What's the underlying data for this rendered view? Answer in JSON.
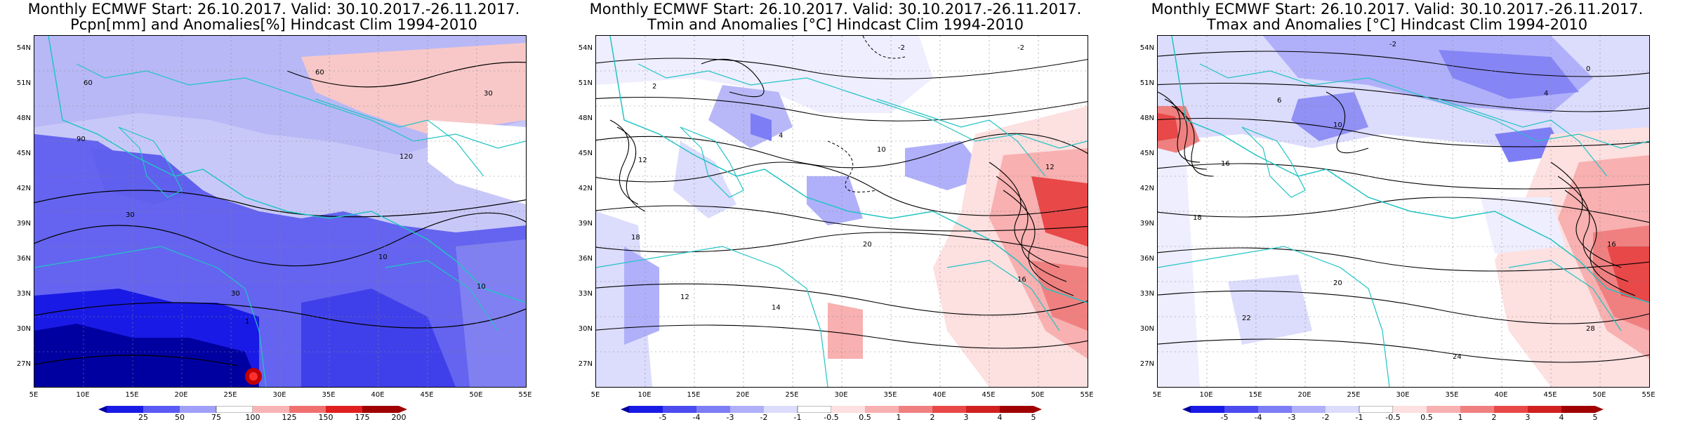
{
  "panels": [
    {
      "title_line1": "Monthly ECMWF Start: 26.10.2017. Valid: 30.10.2017.-26.11.2017.",
      "title_line2": "Pcpn[mm] and Anomalies[%] Hindcast Clim 1994-2010",
      "colorbar_ticks": [
        "25",
        "50",
        "75",
        "100",
        "125",
        "150",
        "175",
        "200"
      ],
      "contour_labels": [
        "60",
        "60",
        "30",
        "90",
        "120",
        "30",
        "10",
        "30",
        "10",
        "1"
      ]
    },
    {
      "title_line1": "Monthly ECMWF Start: 26.10.2017. Valid: 30.10.2017.-26.11.2017.",
      "title_line2": "Tmin and Anomalies [°C] Hindcast Clim 1994-2010",
      "colorbar_ticks": [
        "-5",
        "-4",
        "-3",
        "-2",
        "-1",
        "-0.5",
        "0.5",
        "1",
        "2",
        "3",
        "4",
        "5"
      ],
      "contour_labels": [
        "-2",
        "-2",
        "2",
        "4",
        "10",
        "12",
        "18",
        "12",
        "14",
        "20",
        "16",
        "12"
      ]
    },
    {
      "title_line1": "Monthly ECMWF Start: 26.10.2017. Valid: 30.10.2017.-26.11.2017.",
      "title_line2": "Tmax and Anomalies [°C] Hindcast Clim 1994-2010",
      "colorbar_ticks": [
        "-5",
        "-4",
        "-3",
        "-2",
        "-1",
        "-0.5",
        "0.5",
        "1",
        "2",
        "3",
        "4",
        "5"
      ],
      "contour_labels": [
        "-2",
        "0",
        "4",
        "6",
        "10",
        "16",
        "18",
        "20",
        "22",
        "24",
        "16",
        "28"
      ]
    }
  ],
  "lat_labels": [
    "54N",
    "51N",
    "48N",
    "45N",
    "42N",
    "39N",
    "36N",
    "33N",
    "30N",
    "27N"
  ],
  "lon_labels": [
    "5E",
    "10E",
    "15E",
    "20E",
    "25E",
    "30E",
    "35E",
    "40E",
    "45E",
    "50E",
    "55E"
  ],
  "colors": {
    "precip_scale": [
      "#0000a0",
      "#1a1ae6",
      "#5a5af5",
      "#a0a0f8",
      "#ffffff",
      "#f8b4b4",
      "#f07070",
      "#e02020",
      "#a00000"
    ],
    "temp_scale": [
      "#0000a0",
      "#1a1ae6",
      "#4b4bf0",
      "#7d7df5",
      "#b0b0fa",
      "#dcdcfd",
      "#ffffff",
      "#fde0e0",
      "#f8b0b0",
      "#f08080",
      "#e84848",
      "#d02020",
      "#a00000"
    ],
    "coastline": "#22c4c4"
  }
}
